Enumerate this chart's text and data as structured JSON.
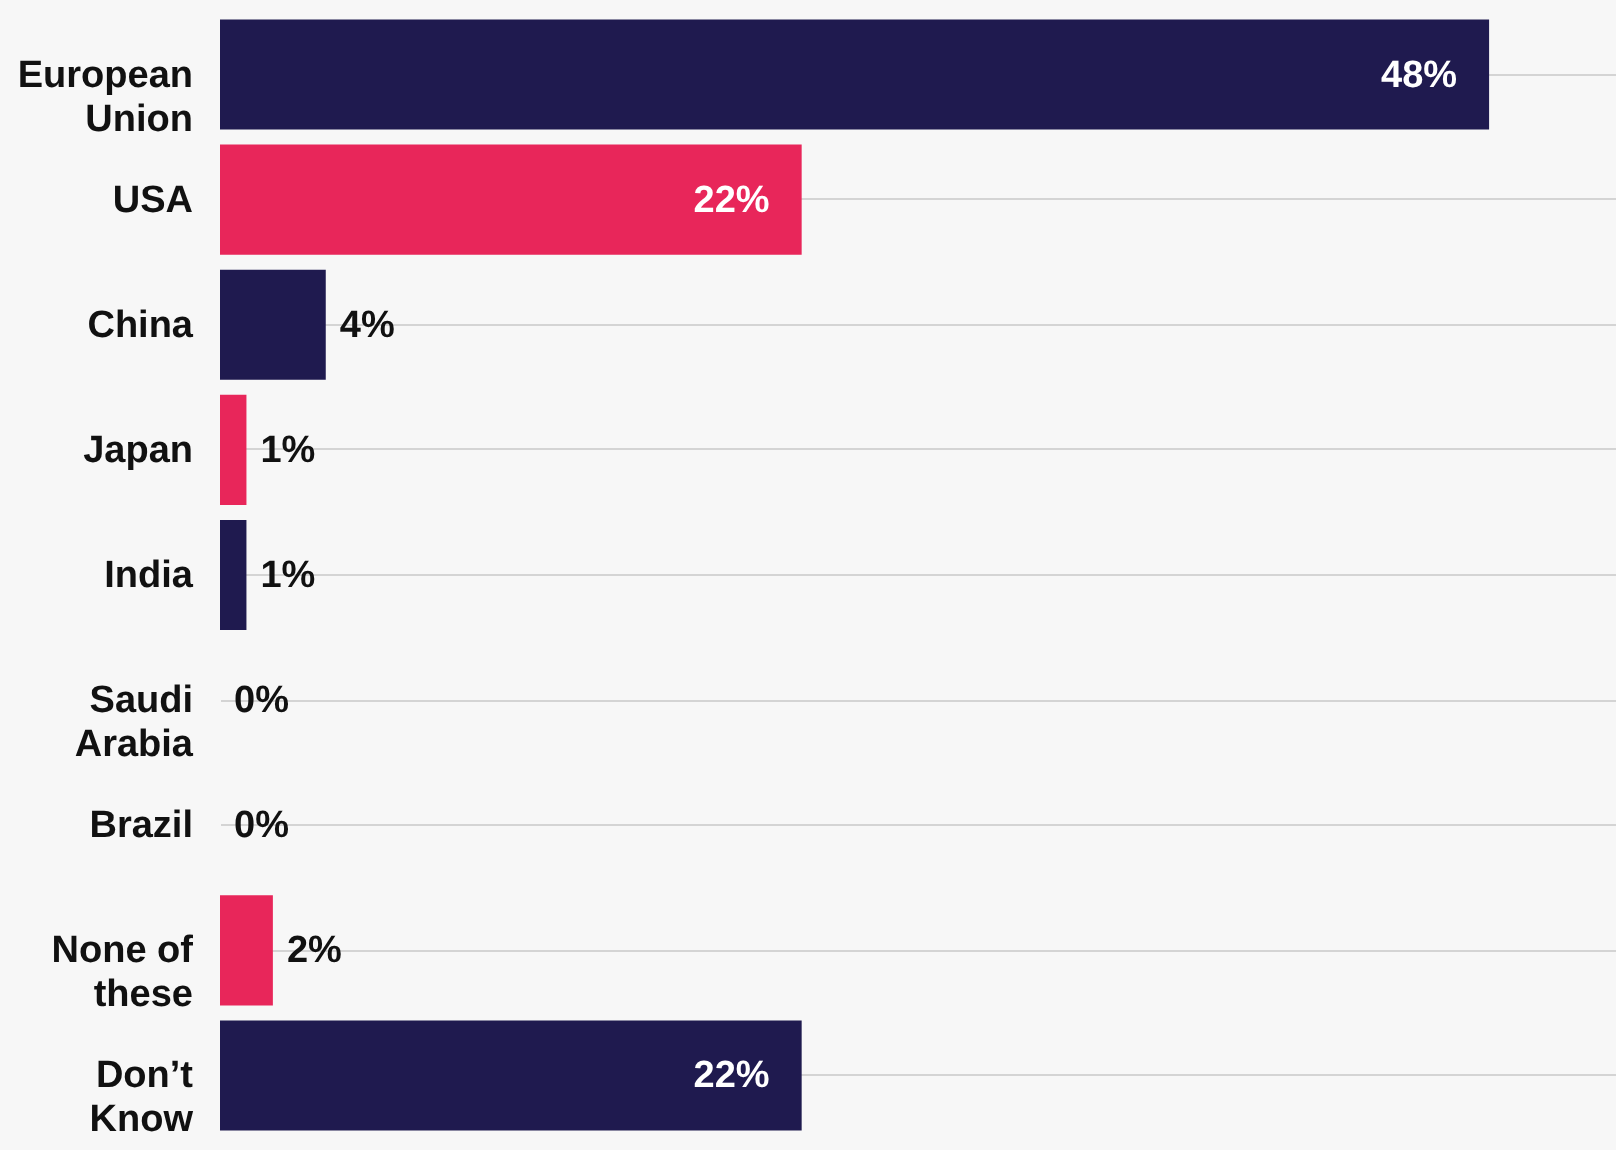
{
  "chart_data": {
    "type": "bar",
    "orientation": "horizontal",
    "categories": [
      "European Union",
      "USA",
      "China",
      "Japan",
      "India",
      "Saudi Arabia",
      "Brazil",
      "None of these",
      "Don’t Know"
    ],
    "values": [
      48,
      22,
      4,
      1,
      1,
      0,
      0,
      2,
      22
    ],
    "value_labels": [
      "48%",
      "22%",
      "4%",
      "1%",
      "1%",
      "0%",
      "0%",
      "2%",
      "22%"
    ],
    "colors": [
      "#1f1a4f",
      "#e8265a",
      "#1f1a4f",
      "#e8265a",
      "#1f1a4f",
      "#e8265a",
      "#1f1a4f",
      "#e8265a",
      "#1f1a4f"
    ],
    "grid": "y"
  }
}
